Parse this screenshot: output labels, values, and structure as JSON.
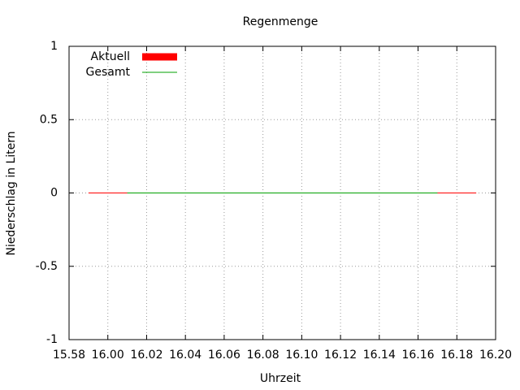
{
  "chart_data": {
    "type": "line",
    "title": "Regenmenge",
    "x_label": "Uhrzeit",
    "y_label": "Niederschlag in Litern",
    "series": [
      {
        "name": "Aktuell",
        "color": "#ff0000",
        "x": [
          "15.59",
          "16.19"
        ],
        "values": [
          0,
          0
        ]
      },
      {
        "name": "Gesamt",
        "color": "#00a000",
        "x": [
          "16.01",
          "16.17"
        ],
        "values": [
          0,
          0
        ]
      }
    ],
    "xlim": [
      "15.58",
      "16.20"
    ],
    "xticks": [
      "15.58",
      "16.00",
      "16.02",
      "16.04",
      "16.06",
      "16.08",
      "16.10",
      "16.12",
      "16.14",
      "16.16",
      "16.18",
      "16.20"
    ],
    "ylim": [
      -1,
      1
    ],
    "yticks": [
      1,
      0.5,
      0,
      -0.5,
      -1
    ],
    "grid": true,
    "legend": "top-left"
  }
}
